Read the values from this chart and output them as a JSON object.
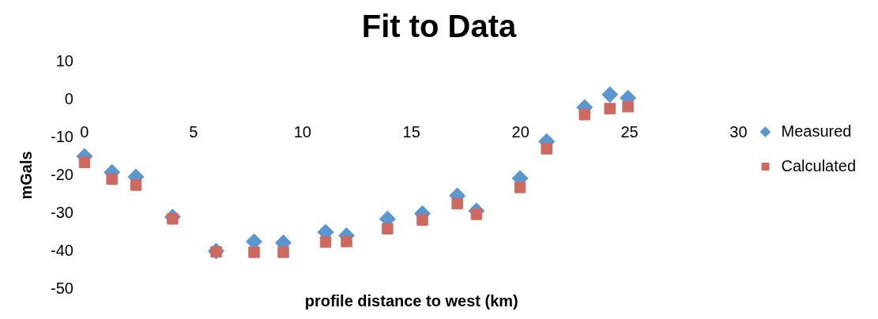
{
  "chart_data": {
    "type": "scatter",
    "title": "Fit to Data",
    "xlabel": "profile distance to west (km)",
    "ylabel": "mGals",
    "x": [
      0,
      1.26,
      2.36,
      4.04,
      6.04,
      7.78,
      9.12,
      11.06,
      12.02,
      13.9,
      15.5,
      17.1,
      17.98,
      19.98,
      21.2,
      22.94,
      24.1,
      24.93
    ],
    "series": [
      {
        "name": "Measured",
        "color": "#5a96cf",
        "marker": "diamond",
        "values": [
          -15,
          -19.2,
          -20.4,
          -31,
          -40,
          -37.5,
          -37.8,
          -35,
          -35.9,
          -31.5,
          -30.1,
          -25.4,
          -29.4,
          -20.8,
          -11.1,
          -2.1,
          1.3,
          0.4
        ]
      },
      {
        "name": "Calculated",
        "color": "#cd6a60",
        "marker": "square",
        "values": [
          -16.6,
          -21,
          -22.6,
          -31.5,
          -40.2,
          -40.3,
          -40.3,
          -37.6,
          -37.5,
          -34.1,
          -31.8,
          -27.5,
          -30.3,
          -23.2,
          -13,
          -4,
          -2.4,
          -1.9
        ]
      }
    ],
    "xlim": [
      0,
      30
    ],
    "xticks": [
      0,
      5,
      10,
      15,
      20,
      25,
      30
    ],
    "ylim": [
      -50,
      10
    ],
    "yticks": [
      -50,
      -40,
      -30,
      -20,
      -10,
      0,
      10
    ],
    "grid": false,
    "legend": "right"
  }
}
